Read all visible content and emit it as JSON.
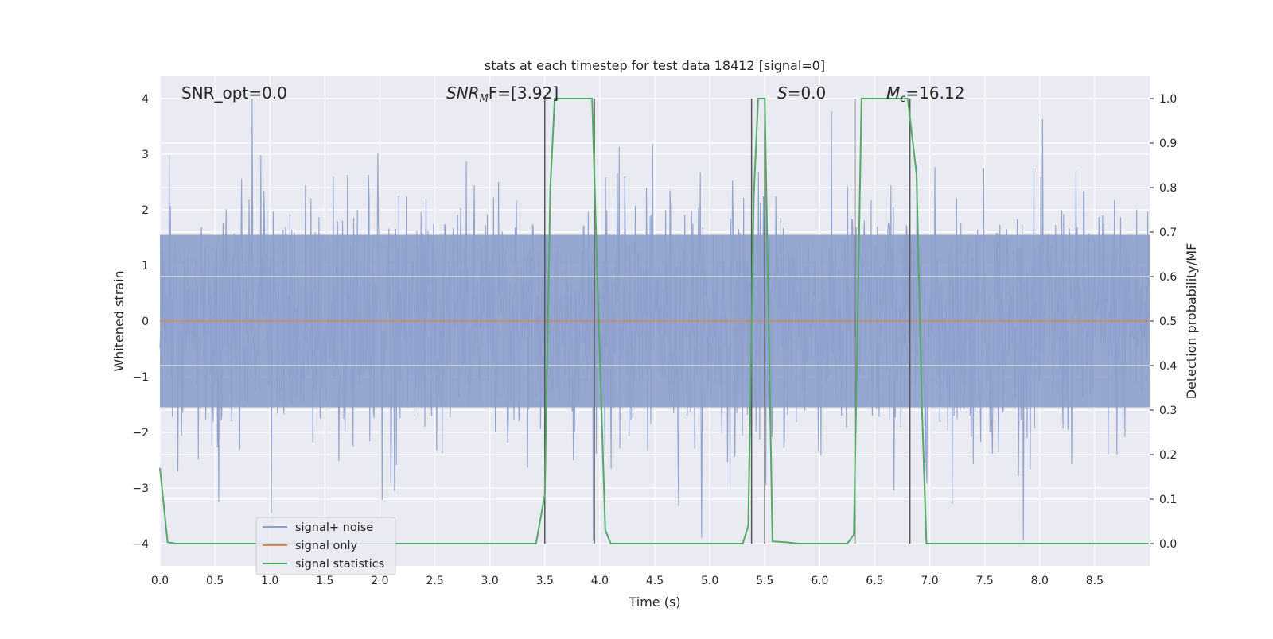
{
  "chart_data": {
    "type": "line",
    "title": "stats at each timestep for test data 18412 [signal=0]",
    "xlabel": "Time (s)",
    "ylabel_left": "Whitened strain",
    "ylabel_right": "Detection probability/MF",
    "xlim": [
      0.0,
      9.0
    ],
    "ylim_left": [
      -4.4,
      4.4
    ],
    "ylim_right": [
      -0.05,
      1.05
    ],
    "xticks": [
      "0.0",
      "0.5",
      "1.0",
      "1.5",
      "2.0",
      "2.5",
      "3.0",
      "3.5",
      "4.0",
      "4.5",
      "5.0",
      "5.5",
      "6.0",
      "6.5",
      "7.0",
      "7.5",
      "8.0",
      "8.5"
    ],
    "yticks_left": [
      "4",
      "3",
      "2",
      "1",
      "0",
      "−1",
      "−2",
      "−3",
      "−4"
    ],
    "yticks_right": [
      "1.0",
      "0.9",
      "0.8",
      "0.7",
      "0.6",
      "0.5",
      "0.4",
      "0.3",
      "0.2",
      "0.1",
      "0.0"
    ],
    "grid": true,
    "legend_position": "lower-left",
    "annotations": {
      "snr_opt": "SNR_opt=0.0",
      "snr_mf_base": "SNR",
      "snr_mf_sub": "M",
      "snr_mf_rest": "F=[3.92]",
      "s_label": "S",
      "s_rest": "=0.0",
      "mc_base": "M",
      "mc_sub": "c",
      "mc_rest": "=16.12"
    },
    "series": [
      {
        "name": "signal+ noise",
        "color": "#8da0cb",
        "description_level_left_axis": "noise envelope approx ±4"
      },
      {
        "name": "signal only",
        "color": "#dd8452",
        "values_left_axis": 0.0
      },
      {
        "name": "signal statistics",
        "color": "#55a868",
        "x": [
          0.0,
          0.07,
          0.15,
          3.42,
          3.5,
          3.55,
          3.59,
          3.93,
          3.98,
          4.05,
          4.1,
          5.3,
          5.35,
          5.4,
          5.44,
          5.5,
          5.57,
          5.7,
          5.8,
          6.25,
          6.31,
          6.38,
          6.45,
          6.8,
          6.88,
          6.93,
          6.97,
          8.99
        ],
        "y": [
          0.17,
          0.003,
          0.0,
          0.0,
          0.11,
          0.8,
          1.0,
          1.0,
          0.58,
          0.03,
          0.0,
          0.0,
          0.04,
          0.78,
          1.0,
          1.0,
          0.005,
          0.003,
          0.0,
          0.0,
          0.02,
          1.0,
          1.0,
          1.0,
          0.83,
          0.3,
          0.0,
          0.0
        ]
      }
    ],
    "vertical_markers_time_s": [
      3.5,
      3.95,
      5.38,
      5.5,
      6.32,
      6.82
    ]
  }
}
